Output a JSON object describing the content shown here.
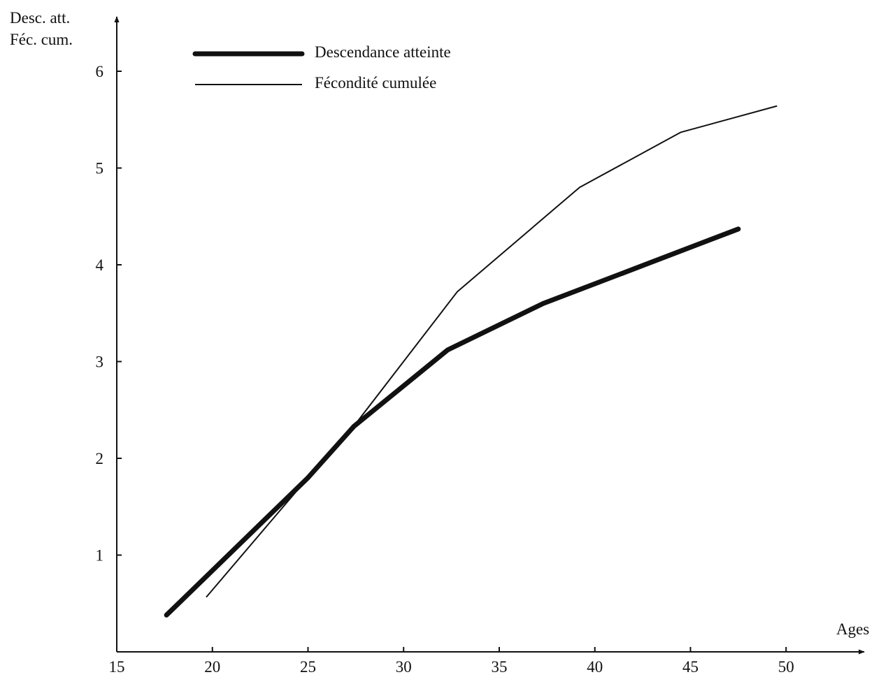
{
  "chart_data": {
    "type": "line",
    "title": "",
    "xlabel": "Ages",
    "ylabel_lines": [
      "Desc. att.",
      "Féc. cum."
    ],
    "xlim": [
      15,
      53
    ],
    "ylim": [
      0,
      6.6
    ],
    "x_ticks": [
      15,
      20,
      25,
      30,
      35,
      40,
      45,
      50
    ],
    "y_ticks": [
      1,
      2,
      3,
      4,
      5,
      6
    ],
    "legend_position": "top-left",
    "grid": false,
    "series": [
      {
        "name": "Descendance atteinte",
        "style": "thick",
        "color": "#111111",
        "points": [
          [
            17.6,
            0.38
          ],
          [
            25,
            1.8
          ],
          [
            27.4,
            2.33
          ],
          [
            32.3,
            3.12
          ],
          [
            37.3,
            3.6
          ],
          [
            47.5,
            4.37
          ]
        ]
      },
      {
        "name": "Fécondité cumulée",
        "style": "thin",
        "color": "#111111",
        "points": [
          [
            19.7,
            0.57
          ],
          [
            25,
            1.8
          ],
          [
            27,
            2.23
          ],
          [
            32.8,
            3.72
          ],
          [
            39.2,
            4.8
          ],
          [
            44.5,
            5.37
          ],
          [
            49.5,
            5.64
          ]
        ]
      }
    ]
  }
}
